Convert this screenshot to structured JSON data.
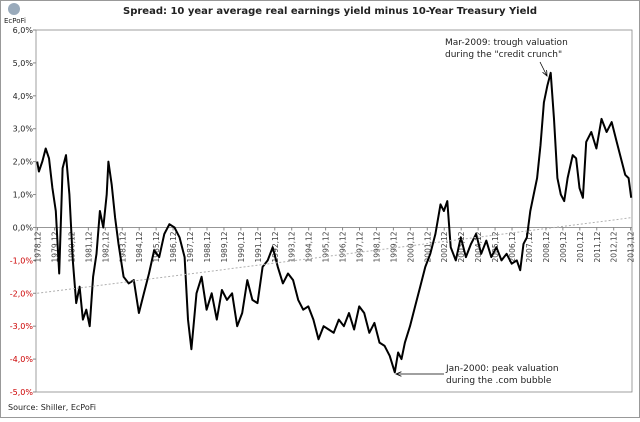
{
  "chart_data": {
    "type": "line",
    "logo": "EcPoFi",
    "title": "Spread: 10 year average real earnings yield minus 10-Year Treasury Yield",
    "source": "Source: Shiller, EcPoFi",
    "annotations": [
      [
        "Mar-2009:  trough valuation",
        "during the \"credit crunch\""
      ],
      [
        "Jan-2000: peak valuation",
        "during the .com bubble"
      ]
    ],
    "xlim": [
      1978.83,
      2014.0
    ],
    "xticks": [
      {
        "value": 1978.92,
        "label": "1978,12"
      },
      {
        "value": 1979.92,
        "label": "1979,12"
      },
      {
        "value": 1980.92,
        "label": "1980,12"
      },
      {
        "value": 1981.92,
        "label": "1981,12"
      },
      {
        "value": 1982.92,
        "label": "1982,12"
      },
      {
        "value": 1983.92,
        "label": "1983,12"
      },
      {
        "value": 1984.92,
        "label": "1984,12"
      },
      {
        "value": 1985.92,
        "label": "1985,12"
      },
      {
        "value": 1986.92,
        "label": "1986,12"
      },
      {
        "value": 1987.92,
        "label": "1987,12"
      },
      {
        "value": 1988.92,
        "label": "1988,12"
      },
      {
        "value": 1989.92,
        "label": "1989,12"
      },
      {
        "value": 1990.92,
        "label": "1990,12"
      },
      {
        "value": 1991.92,
        "label": "1991,12"
      },
      {
        "value": 1992.92,
        "label": "1992,12"
      },
      {
        "value": 1993.92,
        "label": "1993,12"
      },
      {
        "value": 1994.92,
        "label": "1994,12"
      },
      {
        "value": 1995.92,
        "label": "1995,12"
      },
      {
        "value": 1996.92,
        "label": "1996,12"
      },
      {
        "value": 1997.92,
        "label": "1997,12"
      },
      {
        "value": 1998.92,
        "label": "1998,12"
      },
      {
        "value": 1999.92,
        "label": "1999,12"
      },
      {
        "value": 2000.92,
        "label": "2000,12"
      },
      {
        "value": 2001.92,
        "label": "2001,12"
      },
      {
        "value": 2002.92,
        "label": "2002,12"
      },
      {
        "value": 2003.92,
        "label": "2003,12"
      },
      {
        "value": 2004.92,
        "label": "2004,12"
      },
      {
        "value": 2005.92,
        "label": "2005,12"
      },
      {
        "value": 2006.92,
        "label": "2006,12"
      },
      {
        "value": 2007.92,
        "label": "2007,12"
      },
      {
        "value": 2008.92,
        "label": "2008,12"
      },
      {
        "value": 2009.92,
        "label": "2009,12"
      },
      {
        "value": 2010.92,
        "label": "2010,12"
      },
      {
        "value": 2011.92,
        "label": "2011,12"
      },
      {
        "value": 2012.92,
        "label": "2012,12"
      },
      {
        "value": 2013.92,
        "label": "2013,12"
      }
    ],
    "ylim": [
      -5,
      6
    ],
    "yticks": [
      {
        "value": 6,
        "label": "6,0%"
      },
      {
        "value": 5,
        "label": "5,0%"
      },
      {
        "value": 4,
        "label": "4,0%"
      },
      {
        "value": 3,
        "label": "3,0%"
      },
      {
        "value": 2,
        "label": "2,0%"
      },
      {
        "value": 1,
        "label": "1,0%"
      },
      {
        "value": 0,
        "label": "0,0%"
      },
      {
        "value": -1,
        "label": "-1,0%"
      },
      {
        "value": -2,
        "label": "-2,0%"
      },
      {
        "value": -3,
        "label": "-3,0%"
      },
      {
        "value": -4,
        "label": "-4,0%"
      },
      {
        "value": -5,
        "label": "-5,0%"
      }
    ],
    "negative_tick_color": "#cc0000",
    "grid": false,
    "series": [
      {
        "color": "#000000",
        "x": [
          1978.9,
          1979.0,
          1979.2,
          1979.4,
          1979.6,
          1979.8,
          1980.0,
          1980.2,
          1980.4,
          1980.6,
          1980.8,
          1981.0,
          1981.2,
          1981.4,
          1981.6,
          1981.8,
          1982.0,
          1982.2,
          1982.4,
          1982.6,
          1982.8,
          1983.0,
          1983.1,
          1983.3,
          1983.5,
          1983.7,
          1984.0,
          1984.3,
          1984.6,
          1984.9,
          1985.2,
          1985.5,
          1985.8,
          1986.1,
          1986.4,
          1986.7,
          1987.0,
          1987.3,
          1987.6,
          1987.8,
          1988.0,
          1988.3,
          1988.6,
          1988.9,
          1989.2,
          1989.5,
          1989.8,
          1990.1,
          1990.4,
          1990.7,
          1991.0,
          1991.3,
          1991.6,
          1991.9,
          1992.2,
          1992.5,
          1992.8,
          1993.1,
          1993.4,
          1993.7,
          1994.0,
          1994.3,
          1994.6,
          1994.9,
          1995.2,
          1995.5,
          1995.8,
          1996.1,
          1996.4,
          1996.7,
          1997.0,
          1997.3,
          1997.6,
          1997.9,
          1998.2,
          1998.5,
          1998.8,
          1999.1,
          1999.4,
          1999.7,
          2000.0,
          2000.2,
          2000.4,
          2000.6,
          2000.9,
          2001.2,
          2001.5,
          2001.8,
          2002.1,
          2002.4,
          2002.7,
          2002.9,
          2003.1,
          2003.3,
          2003.6,
          2003.9,
          2004.2,
          2004.5,
          2004.8,
          2005.1,
          2005.4,
          2005.7,
          2006.0,
          2006.3,
          2006.6,
          2006.9,
          2007.2,
          2007.4,
          2007.6,
          2007.8,
          2008.0,
          2008.2,
          2008.4,
          2008.6,
          2008.8,
          2009.0,
          2009.2,
          2009.4,
          2009.6,
          2009.8,
          2010.0,
          2010.2,
          2010.5,
          2010.7,
          2010.9,
          2011.1,
          2011.3,
          2011.6,
          2011.9,
          2012.2,
          2012.5,
          2012.8,
          2013.1,
          2013.4,
          2013.6,
          2013.8,
          2013.95
        ],
        "values": [
          2.0,
          1.7,
          2.0,
          2.4,
          2.1,
          1.2,
          0.5,
          -1.4,
          1.8,
          2.2,
          1.0,
          -1.0,
          -2.3,
          -1.8,
          -2.8,
          -2.5,
          -3.0,
          -1.5,
          -0.8,
          0.5,
          0.0,
          1.0,
          2.0,
          1.3,
          0.3,
          -0.5,
          -1.5,
          -1.7,
          -1.6,
          -2.6,
          -2.0,
          -1.4,
          -0.7,
          -0.9,
          -0.2,
          0.1,
          0.0,
          -0.3,
          -0.9,
          -2.8,
          -3.7,
          -2.0,
          -1.5,
          -2.5,
          -2.0,
          -2.8,
          -1.9,
          -2.2,
          -2.0,
          -3.0,
          -2.6,
          -1.6,
          -2.2,
          -2.3,
          -1.2,
          -1.0,
          -0.6,
          -1.2,
          -1.7,
          -1.4,
          -1.6,
          -2.2,
          -2.5,
          -2.4,
          -2.8,
          -3.4,
          -3.0,
          -3.1,
          -3.2,
          -2.8,
          -3.0,
          -2.6,
          -3.1,
          -2.4,
          -2.6,
          -3.2,
          -2.9,
          -3.5,
          -3.6,
          -3.9,
          -4.4,
          -3.8,
          -4.0,
          -3.5,
          -3.0,
          -2.4,
          -1.8,
          -1.2,
          -0.8,
          -0.2,
          0.7,
          0.5,
          0.8,
          -0.6,
          -1.0,
          -0.3,
          -0.9,
          -0.5,
          -0.2,
          -0.8,
          -0.4,
          -0.9,
          -0.6,
          -1.0,
          -0.8,
          -1.1,
          -1.0,
          -1.3,
          -0.5,
          -0.3,
          0.5,
          1.0,
          1.5,
          2.5,
          3.8,
          4.3,
          4.7,
          3.3,
          1.5,
          1.0,
          0.8,
          1.5,
          2.2,
          2.1,
          1.2,
          0.9,
          2.6,
          2.9,
          2.4,
          3.3,
          2.9,
          3.2,
          2.6,
          2.0,
          1.6,
          1.5,
          0.9
        ]
      },
      {
        "color": "#b0b0b0",
        "dashed": true,
        "x": [
          1978.9,
          2014.0
        ],
        "values": [
          -2.0,
          0.3
        ]
      }
    ]
  }
}
